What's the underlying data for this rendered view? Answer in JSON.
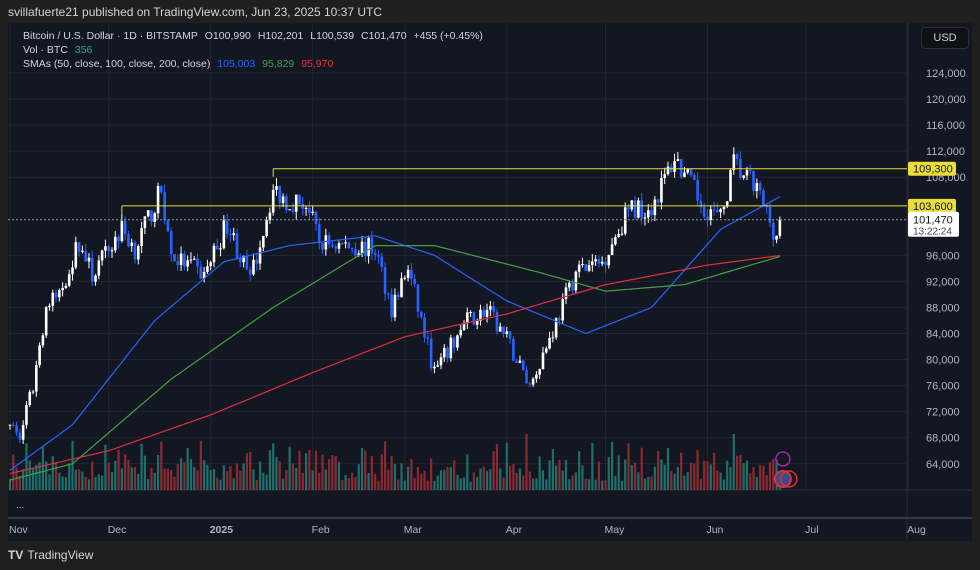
{
  "header": {
    "published": "svillafuerte21 published on TradingView.com, Jun 23, 2025 10:37 UTC"
  },
  "legend": {
    "symbol": "Bitcoin / U.S. Dollar · 1D · BITSTAMP",
    "open": "O100,990",
    "high": "H102,201",
    "low": "L100,539",
    "close": "C101,470",
    "change": "+455 (+0.45%)",
    "vol_label": "Vol · BTC",
    "vol_value": "356",
    "sma_label": "SMAs (50, close, 100, close, 200, close)",
    "sma50": "105,003",
    "sma100": "95,829",
    "sma200": "95,970"
  },
  "currency_button": "USD",
  "more": "...",
  "footer": {
    "brand": "TradingView"
  },
  "colors": {
    "up": "#ffffff",
    "down": "#2962ff",
    "vol_up": "#1f6f6a",
    "vol_down": "#8c2a32",
    "sma50": "#2962ff",
    "sma100": "#43a047",
    "sma200": "#e0303d",
    "level": "#e8dd3a",
    "background": "#131722"
  },
  "chart_data": {
    "type": "candlestick",
    "price_ticks": [
      "124,000",
      "120,000",
      "116,000",
      "112,000",
      "108,000",
      "96,000",
      "92,000",
      "88,000",
      "84,000",
      "80,000",
      "76,000",
      "72,000",
      "68,000",
      "64,000"
    ],
    "time_ticks": [
      "Nov",
      "Dec",
      "2025",
      "Feb",
      "Mar",
      "Apr",
      "May",
      "Jun",
      "Jul",
      "Aug"
    ],
    "ylim": [
      60000,
      126000
    ],
    "close_path": [
      [
        "2024-11-01",
        70000
      ],
      [
        "2024-11-04",
        68000
      ],
      [
        "2024-11-08",
        76000
      ],
      [
        "2024-11-12",
        88000
      ],
      [
        "2024-11-16",
        90000
      ],
      [
        "2024-11-22",
        98000
      ],
      [
        "2024-11-26",
        93000
      ],
      [
        "2024-12-05",
        100000
      ],
      [
        "2024-12-09",
        97000
      ],
      [
        "2024-12-17",
        106000
      ],
      [
        "2024-12-20",
        96000
      ],
      [
        "2024-12-30",
        93000
      ],
      [
        "2025-01-06",
        101000
      ],
      [
        "2025-01-13",
        92000
      ],
      [
        "2025-01-20",
        106000
      ],
      [
        "2025-01-24",
        104500
      ],
      [
        "2025-01-30",
        104000
      ],
      [
        "2025-02-03",
        98000
      ],
      [
        "2025-02-20",
        97000
      ],
      [
        "2025-02-25",
        88000
      ],
      [
        "2025-03-02",
        94000
      ],
      [
        "2025-03-10",
        78000
      ],
      [
        "2025-03-20",
        86000
      ],
      [
        "2025-03-26",
        87500
      ],
      [
        "2025-04-01",
        83000
      ],
      [
        "2025-04-08",
        76000
      ],
      [
        "2025-04-15",
        84500
      ],
      [
        "2025-04-22",
        93500
      ],
      [
        "2025-04-30",
        95000
      ],
      [
        "2025-05-08",
        103000
      ],
      [
        "2025-05-15",
        103500
      ],
      [
        "2025-05-22",
        111000
      ],
      [
        "2025-05-30",
        104000
      ],
      [
        "2025-06-05",
        101500
      ],
      [
        "2025-06-09",
        110000
      ],
      [
        "2025-06-16",
        106000
      ],
      [
        "2025-06-22",
        99000
      ],
      [
        "2025-06-23",
        101470
      ]
    ],
    "last": {
      "price": "101,470",
      "countdown": "13:22:24"
    },
    "horizontal_levels": [
      {
        "price": 109300,
        "label": "109,300",
        "from": "2025-01-20"
      },
      {
        "price": 103600,
        "label": "103,600",
        "from": "2024-12-05"
      }
    ],
    "sma50_path": [
      [
        "2024-11-01",
        63000
      ],
      [
        "2024-11-20",
        70000
      ],
      [
        "2024-12-15",
        86000
      ],
      [
        "2025-01-05",
        95000
      ],
      [
        "2025-01-25",
        97500
      ],
      [
        "2025-02-20",
        99000
      ],
      [
        "2025-03-10",
        96000
      ],
      [
        "2025-04-01",
        89000
      ],
      [
        "2025-04-25",
        84000
      ],
      [
        "2025-05-15",
        88000
      ],
      [
        "2025-06-05",
        100000
      ],
      [
        "2025-06-23",
        105003
      ]
    ],
    "sma100_path": [
      [
        "2024-11-01",
        61500
      ],
      [
        "2024-11-20",
        64000
      ],
      [
        "2024-12-20",
        77000
      ],
      [
        "2025-01-20",
        88000
      ],
      [
        "2025-02-20",
        97500
      ],
      [
        "2025-03-10",
        97500
      ],
      [
        "2025-04-10",
        93500
      ],
      [
        "2025-05-01",
        90500
      ],
      [
        "2025-05-25",
        91500
      ],
      [
        "2025-06-23",
        95829
      ]
    ],
    "sma200_path": [
      [
        "2024-11-01",
        62500
      ],
      [
        "2024-12-01",
        66000
      ],
      [
        "2025-01-01",
        71500
      ],
      [
        "2025-02-01",
        78000
      ],
      [
        "2025-03-01",
        83500
      ],
      [
        "2025-04-01",
        87000
      ],
      [
        "2025-05-01",
        91500
      ],
      [
        "2025-06-01",
        94500
      ],
      [
        "2025-06-23",
        95970
      ]
    ]
  }
}
